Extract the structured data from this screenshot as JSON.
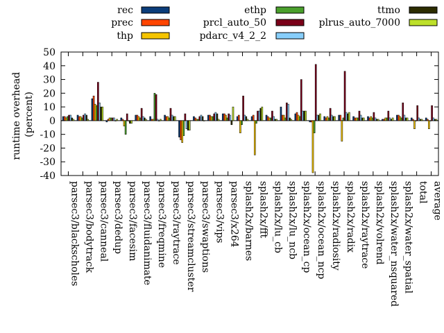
{
  "chart_data": {
    "type": "bar",
    "ylabel": "runtime overhead (percent)",
    "ylabel_lines": [
      "runtime overhead",
      "(percent)"
    ],
    "ylim": [
      -40,
      50
    ],
    "yticks": [
      -40,
      -30,
      -20,
      -10,
      0,
      10,
      20,
      30,
      40,
      50
    ],
    "grid": false,
    "legend_position": "top",
    "categories": [
      "parsec3/blackscholes",
      "parsec3/bodytrack",
      "parsec3/canneal",
      "parsec3/dedup",
      "parsec3/facesim",
      "parsec3/fluidanimate",
      "parsec3/freqmine",
      "parsec3/raytrace",
      "parsec3/streamcluster",
      "parsec3/swaptions",
      "parsec3/vips",
      "parsec3/x264",
      "splash2x/barnes",
      "splash2x/fft",
      "splash2x/lu_cb",
      "splash2x/lu_ncb",
      "splash2x/ocean_cp",
      "splash2x/ocean_ncp",
      "splash2x/radiosity",
      "splash2x/radix",
      "splash2x/raytrace",
      "splash2x/volrend",
      "splash2x/water_nsquared",
      "splash2x/water_spatial",
      "total",
      "average"
    ],
    "series": [
      {
        "name": "rec",
        "color": "#0b3d7a",
        "values": [
          3,
          4,
          16,
          -1,
          2,
          4,
          3,
          4,
          -12,
          3,
          4,
          5,
          3,
          3,
          4,
          10,
          5,
          -1,
          3,
          4,
          3,
          3,
          1,
          4,
          2,
          2
        ]
      },
      {
        "name": "prec",
        "color": "#ff4500",
        "values": [
          3,
          3,
          18,
          1,
          1,
          4,
          1,
          3,
          -14,
          2,
          4,
          5,
          4,
          4,
          3,
          4,
          6,
          -1,
          2,
          4,
          2,
          2,
          1,
          4,
          1,
          1
        ]
      },
      {
        "name": "thp",
        "color": "#f5c400",
        "values": [
          2,
          3,
          12,
          2,
          -4,
          3,
          1,
          3,
          -16,
          1,
          3,
          4,
          -9,
          -25,
          2,
          4,
          4,
          -38,
          3,
          -15,
          2,
          3,
          2,
          3,
          -6,
          -6
        ]
      },
      {
        "name": "ethp",
        "color": "#4aa02c",
        "values": [
          3,
          2,
          11,
          2,
          -10,
          2,
          20,
          2,
          -11,
          1,
          3,
          2,
          -3,
          -2,
          2,
          2,
          3,
          -9,
          2,
          2,
          2,
          2,
          2,
          2,
          0,
          0
        ]
      },
      {
        "name": "prcl_auto_50",
        "color": "#7a0019",
        "values": [
          4,
          4,
          28,
          2,
          5,
          9,
          19,
          9,
          5,
          3,
          5,
          5,
          18,
          7,
          7,
          13,
          30,
          41,
          9,
          36,
          7,
          6,
          7,
          13,
          11,
          11
        ]
      },
      {
        "name": "pdarc_v4_2_2",
        "color": "#87cefa",
        "values": [
          4,
          5,
          13,
          2,
          0,
          3,
          1,
          4,
          -6,
          4,
          6,
          4,
          4,
          7,
          3,
          12,
          7,
          4,
          4,
          6,
          4,
          2,
          2,
          4,
          2,
          2
        ]
      },
      {
        "name": "ttmo",
        "color": "#2c2c00",
        "values": [
          2,
          4,
          10,
          0,
          -2,
          2,
          0,
          3,
          -7,
          3,
          5,
          -3,
          3,
          9,
          1,
          2,
          7,
          4,
          3,
          5,
          2,
          1,
          1,
          2,
          1,
          1
        ]
      },
      {
        "name": "plrus_auto_7000",
        "color": "#bde02a",
        "values": [
          1,
          1,
          10,
          1,
          -2,
          1,
          1,
          3,
          -7,
          0,
          1,
          10,
          1,
          10,
          1,
          1,
          7,
          5,
          3,
          6,
          2,
          1,
          2,
          2,
          1,
          1
        ]
      }
    ]
  }
}
